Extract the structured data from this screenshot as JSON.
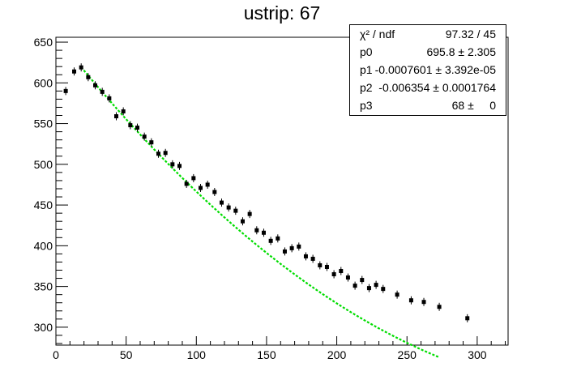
{
  "chart_data": {
    "type": "scatter",
    "title": "ustrip: 67",
    "xlabel": "",
    "ylabel": "",
    "xlim": [
      0,
      322
    ],
    "ylim": [
      278,
      656
    ],
    "xticks": [
      0,
      50,
      100,
      150,
      200,
      250,
      300
    ],
    "yticks": [
      300,
      350,
      400,
      450,
      500,
      550,
      600,
      650
    ],
    "grid": false,
    "series": [
      {
        "points": [
          [
            7,
            590
          ],
          [
            13,
            614
          ],
          [
            18,
            619
          ],
          [
            23,
            607
          ],
          [
            28,
            597
          ],
          [
            33,
            589
          ],
          [
            38,
            581
          ],
          [
            43,
            559
          ],
          [
            48,
            565
          ],
          [
            53,
            548
          ],
          [
            58,
            545
          ],
          [
            63,
            534
          ],
          [
            68,
            527
          ],
          [
            73,
            513
          ],
          [
            78,
            514
          ],
          [
            83,
            500
          ],
          [
            88,
            498
          ],
          [
            93,
            476
          ],
          [
            98,
            483
          ],
          [
            103,
            471
          ],
          [
            108,
            475
          ],
          [
            113,
            466
          ],
          [
            118,
            453
          ],
          [
            123,
            447
          ],
          [
            128,
            443
          ],
          [
            133,
            430
          ],
          [
            138,
            439
          ],
          [
            143,
            419
          ],
          [
            148,
            416
          ],
          [
            153,
            406
          ],
          [
            158,
            409
          ],
          [
            163,
            393
          ],
          [
            168,
            397
          ],
          [
            173,
            399
          ],
          [
            178,
            387
          ],
          [
            183,
            384
          ],
          [
            188,
            376
          ],
          [
            193,
            374
          ],
          [
            198,
            365
          ],
          [
            203,
            369
          ],
          [
            208,
            361
          ],
          [
            213,
            351
          ],
          [
            218,
            358
          ],
          [
            223,
            348
          ],
          [
            228,
            352
          ],
          [
            233,
            347
          ],
          [
            243,
            340
          ],
          [
            253,
            333
          ],
          [
            262,
            331
          ],
          [
            273,
            325
          ],
          [
            293,
            311
          ]
        ]
      }
    ],
    "fit": {
      "color": "#00dd00",
      "x_range": [
        18,
        273
      ],
      "params": {
        "p0": 695.8,
        "p1": -0.0007601,
        "p2": -0.006354,
        "p3": 68
      }
    },
    "stats": [
      {
        "label": "χ² / ndf",
        "value": "97.32 / 45"
      },
      {
        "label": "p0",
        "value": "695.8 ± 2.305"
      },
      {
        "label": "p1",
        "value": "-0.0007601 ± 3.392e-05"
      },
      {
        "label": "p2",
        "value": "-0.006354 ± 0.0001764"
      },
      {
        "label": "p3",
        "value": "68 ±     0"
      }
    ]
  }
}
